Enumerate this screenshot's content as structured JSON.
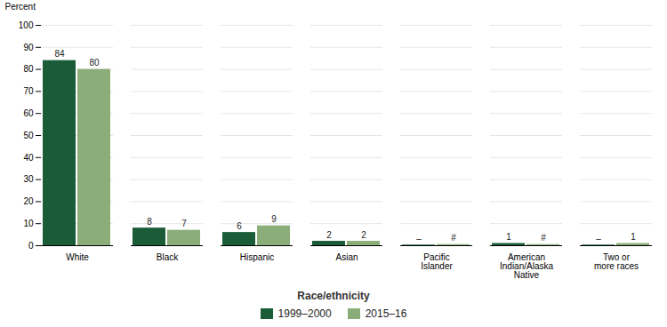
{
  "chart_data": {
    "type": "bar",
    "categories": [
      "White",
      "Black",
      "Hispanic",
      "Asian",
      "Pacific\nIslander",
      "American\nIndian/Alaska\nNative",
      "Two or\nmore races"
    ],
    "series": [
      {
        "name": "1999–2000",
        "color": "#1a5c38",
        "values": [
          84,
          8,
          6,
          2,
          0.3,
          1,
          0.3
        ],
        "value_labels": [
          "84",
          "8",
          "6",
          "2",
          "–",
          "1",
          "–"
        ]
      },
      {
        "name": "2015–16",
        "color": "#8aad7a",
        "values": [
          80,
          7,
          9,
          2,
          0.5,
          0.5,
          1
        ],
        "value_labels": [
          "80",
          "7",
          "9",
          "2",
          "#",
          "#",
          "1"
        ]
      }
    ],
    "x_label": "Race/ethnicity",
    "y_label": "Percent",
    "ylim": [
      0,
      100
    ],
    "yticks": [
      0,
      10,
      20,
      30,
      40,
      50,
      60,
      70,
      80,
      90,
      100
    ],
    "grid": true,
    "data_labels": true,
    "legend": "bottom"
  }
}
